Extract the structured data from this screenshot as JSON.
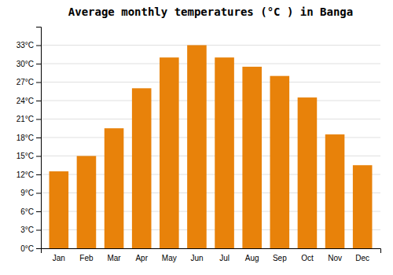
{
  "chart_data": {
    "type": "bar",
    "title": "Average monthly temperatures (°C ) in Banga",
    "categories": [
      "Jan",
      "Feb",
      "Mar",
      "Apr",
      "May",
      "Jun",
      "Jul",
      "Aug",
      "Sep",
      "Oct",
      "Nov",
      "Dec"
    ],
    "values": [
      12.5,
      15.0,
      19.5,
      26.0,
      31.0,
      33.0,
      31.0,
      29.5,
      28.0,
      24.5,
      18.5,
      13.5
    ],
    "color": "#E8820A",
    "ylim": [
      0,
      36
    ],
    "yticks": [
      {
        "value": 0,
        "label": "0°C"
      },
      {
        "value": 3,
        "label": "3°C"
      },
      {
        "value": 6,
        "label": "6°C"
      },
      {
        "value": 9,
        "label": "9°C"
      },
      {
        "value": 12,
        "label": "12°C"
      },
      {
        "value": 15,
        "label": "15°C"
      },
      {
        "value": 18,
        "label": "18°C"
      },
      {
        "value": 21,
        "label": "21°C"
      },
      {
        "value": 24,
        "label": "24°C"
      },
      {
        "value": 27,
        "label": "27°C"
      },
      {
        "value": 30,
        "label": "30°C"
      },
      {
        "value": 33,
        "label": "33°C"
      }
    ],
    "grid": true
  }
}
